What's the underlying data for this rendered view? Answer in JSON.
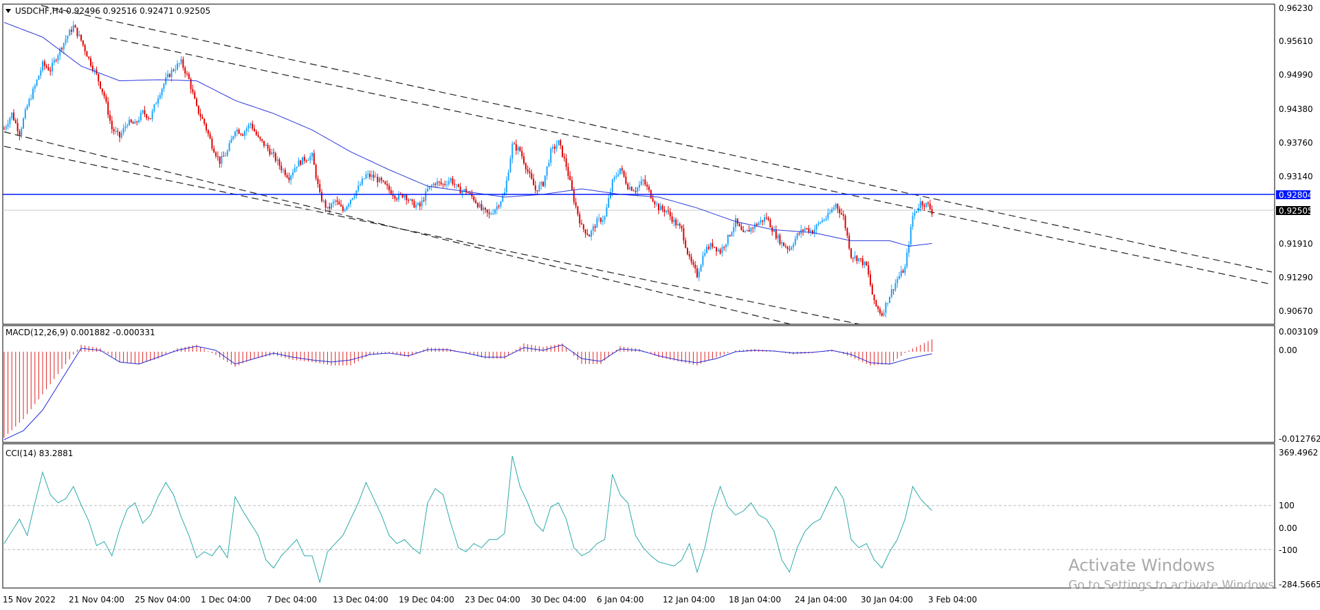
{
  "colors": {
    "bull": "#1aa3ff",
    "bear": "#e00000",
    "ma": "#2a37d8",
    "hline": "#0019ff",
    "macd_hist": "#e02020",
    "macd_signal": "#1f2ad8",
    "cci": "#2aa8a8",
    "price_box": "#000000",
    "level_box": "#0019ff"
  },
  "main": {
    "symbol_header": "USDCHF,H4  0.92496 0.92516 0.92471 0.92505",
    "price_scale": [
      "0.96230",
      "0.95610",
      "0.94990",
      "0.94380",
      "0.93760",
      "0.93140",
      "0.92520",
      "0.91910",
      "0.91290",
      "0.90670"
    ],
    "current_price": "0.92505",
    "horizontal_level": "0.92804"
  },
  "macd": {
    "header": "MACD(12,26,9) 0.001882 -0.000331",
    "scale": [
      "0.003109",
      "0.00",
      "-0.012762"
    ]
  },
  "cci": {
    "header": "CCI(14) 83.2881",
    "scale": [
      "369.4962",
      "100",
      "0.00",
      "-100",
      "-284.5665"
    ]
  },
  "time_axis": [
    "15 Nov 2022",
    "21 Nov 04:00",
    "25 Nov 04:00",
    "1 Dec 04:00",
    "7 Dec 04:00",
    "13 Dec 04:00",
    "19 Dec 04:00",
    "23 Dec 04:00",
    "30 Dec 04:00",
    "6 Jan 04:00",
    "12 Jan 04:00",
    "18 Jan 04:00",
    "24 Jan 04:00",
    "30 Jan 04:00",
    "3 Feb 04:00"
  ],
  "watermark": {
    "line1": "Activate Windows",
    "line2": "Go to Settings to activate Windows."
  },
  "chart_data": {
    "type": "candlestick",
    "symbol": "USDCHF",
    "timeframe": "H4",
    "ylim": [
      0.9052,
      0.9636
    ],
    "close_path": [
      [
        0,
        0.941
      ],
      [
        4,
        0.9438
      ],
      [
        8,
        0.9402
      ],
      [
        12,
        0.9452
      ],
      [
        16,
        0.9488
      ],
      [
        20,
        0.9528
      ],
      [
        24,
        0.9518
      ],
      [
        28,
        0.9548
      ],
      [
        32,
        0.9575
      ],
      [
        36,
        0.9598
      ],
      [
        40,
        0.9572
      ],
      [
        44,
        0.9538
      ],
      [
        48,
        0.9508
      ],
      [
        52,
        0.947
      ],
      [
        56,
        0.941
      ],
      [
        60,
        0.9395
      ],
      [
        64,
        0.9422
      ],
      [
        68,
        0.9418
      ],
      [
        72,
        0.944
      ],
      [
        76,
        0.943
      ],
      [
        80,
        0.947
      ],
      [
        84,
        0.95
      ],
      [
        88,
        0.952
      ],
      [
        92,
        0.9532
      ],
      [
        96,
        0.95
      ],
      [
        100,
        0.9448
      ],
      [
        104,
        0.942
      ],
      [
        108,
        0.938
      ],
      [
        112,
        0.935
      ],
      [
        116,
        0.9368
      ],
      [
        120,
        0.941
      ],
      [
        124,
        0.9402
      ],
      [
        128,
        0.942
      ],
      [
        132,
        0.9392
      ],
      [
        136,
        0.9378
      ],
      [
        140,
        0.936
      ],
      [
        144,
        0.9338
      ],
      [
        148,
        0.9322
      ],
      [
        152,
        0.9345
      ],
      [
        156,
        0.9355
      ],
      [
        160,
        0.936
      ],
      [
        164,
        0.9288
      ],
      [
        168,
        0.9262
      ],
      [
        172,
        0.9278
      ],
      [
        176,
        0.926
      ],
      [
        180,
        0.9282
      ],
      [
        184,
        0.9302
      ],
      [
        188,
        0.9325
      ],
      [
        192,
        0.9322
      ],
      [
        196,
        0.9312
      ],
      [
        200,
        0.9298
      ],
      [
        204,
        0.9285
      ],
      [
        208,
        0.929
      ],
      [
        212,
        0.9272
      ],
      [
        216,
        0.9268
      ],
      [
        220,
        0.9298
      ],
      [
        224,
        0.9312
      ],
      [
        228,
        0.9308
      ],
      [
        232,
        0.9318
      ],
      [
        236,
        0.9298
      ],
      [
        240,
        0.9296
      ],
      [
        244,
        0.9282
      ],
      [
        248,
        0.9262
      ],
      [
        252,
        0.9252
      ],
      [
        256,
        0.9268
      ],
      [
        260,
        0.9292
      ],
      [
        264,
        0.938
      ],
      [
        268,
        0.937
      ],
      [
        272,
        0.9332
      ],
      [
        276,
        0.9298
      ],
      [
        280,
        0.931
      ],
      [
        284,
        0.9368
      ],
      [
        288,
        0.9385
      ],
      [
        292,
        0.9342
      ],
      [
        296,
        0.928
      ],
      [
        300,
        0.923
      ],
      [
        304,
        0.9215
      ],
      [
        308,
        0.924
      ],
      [
        312,
        0.9248
      ],
      [
        316,
        0.9312
      ],
      [
        320,
        0.9338
      ],
      [
        324,
        0.9305
      ],
      [
        328,
        0.9298
      ],
      [
        332,
        0.9315
      ],
      [
        336,
        0.9288
      ],
      [
        340,
        0.9265
      ],
      [
        344,
        0.926
      ],
      [
        348,
        0.924
      ],
      [
        352,
        0.9225
      ],
      [
        356,
        0.917
      ],
      [
        360,
        0.9142
      ],
      [
        364,
        0.9188
      ],
      [
        368,
        0.9198
      ],
      [
        372,
        0.9185
      ],
      [
        376,
        0.921
      ],
      [
        380,
        0.924
      ],
      [
        384,
        0.9215
      ],
      [
        388,
        0.9228
      ],
      [
        392,
        0.9238
      ],
      [
        396,
        0.9248
      ],
      [
        400,
        0.922
      ],
      [
        404,
        0.92
      ],
      [
        408,
        0.919
      ],
      [
        412,
        0.9215
      ],
      [
        416,
        0.9228
      ],
      [
        420,
        0.9222
      ],
      [
        424,
        0.924
      ],
      [
        428,
        0.925
      ],
      [
        432,
        0.9272
      ],
      [
        436,
        0.9248
      ],
      [
        440,
        0.9178
      ],
      [
        444,
        0.9172
      ],
      [
        448,
        0.9158
      ],
      [
        452,
        0.909
      ],
      [
        456,
        0.907
      ],
      [
        460,
        0.9105
      ],
      [
        464,
        0.9135
      ],
      [
        468,
        0.9155
      ],
      [
        472,
        0.925
      ],
      [
        476,
        0.9275
      ],
      [
        480,
        0.927
      ],
      [
        482,
        0.9258
      ]
    ],
    "ma_path": [
      [
        0,
        0.9605
      ],
      [
        20,
        0.9578
      ],
      [
        40,
        0.9525
      ],
      [
        60,
        0.9498
      ],
      [
        80,
        0.95
      ],
      [
        100,
        0.9498
      ],
      [
        120,
        0.9462
      ],
      [
        140,
        0.9438
      ],
      [
        160,
        0.9408
      ],
      [
        180,
        0.9368
      ],
      [
        200,
        0.9335
      ],
      [
        220,
        0.9305
      ],
      [
        240,
        0.9295
      ],
      [
        260,
        0.9285
      ],
      [
        280,
        0.929
      ],
      [
        300,
        0.93
      ],
      [
        320,
        0.929
      ],
      [
        340,
        0.9285
      ],
      [
        360,
        0.9265
      ],
      [
        380,
        0.924
      ],
      [
        400,
        0.9225
      ],
      [
        420,
        0.922
      ],
      [
        440,
        0.9205
      ],
      [
        460,
        0.9205
      ],
      [
        470,
        0.9195
      ],
      [
        482,
        0.92
      ]
    ],
    "macd_hist_path": [
      [
        0,
        -0.0125
      ],
      [
        10,
        -0.0098
      ],
      [
        20,
        -0.0062
      ],
      [
        30,
        -0.0025
      ],
      [
        40,
        0.001
      ],
      [
        50,
        0.0005
      ],
      [
        60,
        -0.0015
      ],
      [
        70,
        -0.0018
      ],
      [
        80,
        -0.001
      ],
      [
        90,
        0.0005
      ],
      [
        100,
        0.001
      ],
      [
        110,
        -0.0005
      ],
      [
        120,
        -0.0022
      ],
      [
        130,
        -0.001
      ],
      [
        140,
        -0.0005
      ],
      [
        150,
        -0.0012
      ],
      [
        160,
        -0.0015
      ],
      [
        170,
        -0.002
      ],
      [
        180,
        -0.002
      ],
      [
        190,
        -0.0005
      ],
      [
        200,
        -0.0002
      ],
      [
        210,
        -0.0008
      ],
      [
        220,
        0.0006
      ],
      [
        230,
        0.0005
      ],
      [
        240,
        -0.0002
      ],
      [
        250,
        -0.001
      ],
      [
        260,
        -0.001
      ],
      [
        270,
        0.0012
      ],
      [
        280,
        0.0007
      ],
      [
        290,
        0.0012
      ],
      [
        300,
        -0.0018
      ],
      [
        310,
        -0.0018
      ],
      [
        320,
        0.0008
      ],
      [
        330,
        0.0004
      ],
      [
        340,
        -0.0008
      ],
      [
        350,
        -0.0014
      ],
      [
        360,
        -0.002
      ],
      [
        370,
        -0.0008
      ],
      [
        380,
        0.0002
      ],
      [
        390,
        0.0004
      ],
      [
        400,
        0.0001
      ],
      [
        410,
        -0.0004
      ],
      [
        420,
        -0.0002
      ],
      [
        430,
        0.0003
      ],
      [
        440,
        -0.0008
      ],
      [
        450,
        -0.002
      ],
      [
        460,
        -0.0018
      ],
      [
        470,
        0.0002
      ],
      [
        482,
        0.0018
      ]
    ],
    "macd_signal_path": [
      [
        0,
        -0.0128
      ],
      [
        10,
        -0.0115
      ],
      [
        20,
        -0.0085
      ],
      [
        30,
        -0.004
      ],
      [
        40,
        0.0005
      ],
      [
        50,
        0.0002
      ],
      [
        60,
        -0.0015
      ],
      [
        70,
        -0.0018
      ],
      [
        80,
        -0.0008
      ],
      [
        90,
        0.0002
      ],
      [
        100,
        0.0008
      ],
      [
        110,
        0.0002
      ],
      [
        120,
        -0.0018
      ],
      [
        130,
        -0.001
      ],
      [
        140,
        -0.0002
      ],
      [
        150,
        -0.0008
      ],
      [
        160,
        -0.0012
      ],
      [
        170,
        -0.0015
      ],
      [
        180,
        -0.0012
      ],
      [
        190,
        -0.0004
      ],
      [
        200,
        -0.0002
      ],
      [
        210,
        -0.0006
      ],
      [
        220,
        0.0003
      ],
      [
        230,
        0.0003
      ],
      [
        240,
        -0.0002
      ],
      [
        250,
        -0.0008
      ],
      [
        260,
        -0.0008
      ],
      [
        270,
        0.0006
      ],
      [
        280,
        0.0002
      ],
      [
        290,
        0.001
      ],
      [
        300,
        -0.001
      ],
      [
        310,
        -0.0014
      ],
      [
        320,
        0.0004
      ],
      [
        330,
        0.0002
      ],
      [
        340,
        -0.0006
      ],
      [
        350,
        -0.0012
      ],
      [
        360,
        -0.0016
      ],
      [
        370,
        -0.001
      ],
      [
        380,
        0.0
      ],
      [
        390,
        0.0002
      ],
      [
        400,
        0.0001
      ],
      [
        410,
        -0.0002
      ],
      [
        420,
        -0.0001
      ],
      [
        430,
        0.0002
      ],
      [
        440,
        -0.0004
      ],
      [
        450,
        -0.0016
      ],
      [
        460,
        -0.0018
      ],
      [
        470,
        -0.001
      ],
      [
        482,
        -0.0003
      ]
    ],
    "cci_path": [
      [
        0,
        -80
      ],
      [
        4,
        -20
      ],
      [
        8,
        40
      ],
      [
        12,
        -40
      ],
      [
        16,
        120
      ],
      [
        20,
        270
      ],
      [
        24,
        160
      ],
      [
        28,
        120
      ],
      [
        32,
        140
      ],
      [
        36,
        200
      ],
      [
        40,
        110
      ],
      [
        44,
        30
      ],
      [
        48,
        -90
      ],
      [
        52,
        -70
      ],
      [
        56,
        -140
      ],
      [
        60,
        -10
      ],
      [
        64,
        90
      ],
      [
        68,
        120
      ],
      [
        72,
        20
      ],
      [
        76,
        60
      ],
      [
        80,
        150
      ],
      [
        84,
        220
      ],
      [
        88,
        160
      ],
      [
        92,
        50
      ],
      [
        96,
        -40
      ],
      [
        100,
        -150
      ],
      [
        104,
        -120
      ],
      [
        108,
        -140
      ],
      [
        112,
        -90
      ],
      [
        116,
        -150
      ],
      [
        120,
        150
      ],
      [
        124,
        80
      ],
      [
        128,
        20
      ],
      [
        132,
        -40
      ],
      [
        136,
        -160
      ],
      [
        140,
        -200
      ],
      [
        144,
        -140
      ],
      [
        148,
        -100
      ],
      [
        152,
        -60
      ],
      [
        156,
        -140
      ],
      [
        160,
        -140
      ],
      [
        164,
        -270
      ],
      [
        168,
        -120
      ],
      [
        172,
        -80
      ],
      [
        176,
        -40
      ],
      [
        180,
        40
      ],
      [
        184,
        120
      ],
      [
        188,
        220
      ],
      [
        192,
        140
      ],
      [
        196,
        60
      ],
      [
        200,
        -40
      ],
      [
        204,
        -80
      ],
      [
        208,
        -60
      ],
      [
        212,
        -100
      ],
      [
        216,
        -130
      ],
      [
        220,
        120
      ],
      [
        224,
        190
      ],
      [
        228,
        160
      ],
      [
        232,
        20
      ],
      [
        236,
        -100
      ],
      [
        240,
        -120
      ],
      [
        244,
        -80
      ],
      [
        248,
        -100
      ],
      [
        252,
        -60
      ],
      [
        256,
        -60
      ],
      [
        260,
        -30
      ],
      [
        264,
        350
      ],
      [
        268,
        200
      ],
      [
        272,
        120
      ],
      [
        276,
        20
      ],
      [
        280,
        -20
      ],
      [
        284,
        100
      ],
      [
        288,
        120
      ],
      [
        292,
        40
      ],
      [
        296,
        -100
      ],
      [
        300,
        -140
      ],
      [
        304,
        -120
      ],
      [
        308,
        -80
      ],
      [
        312,
        -60
      ],
      [
        316,
        260
      ],
      [
        320,
        160
      ],
      [
        324,
        120
      ],
      [
        328,
        -40
      ],
      [
        332,
        -100
      ],
      [
        336,
        -140
      ],
      [
        340,
        -170
      ],
      [
        344,
        -180
      ],
      [
        348,
        -190
      ],
      [
        352,
        -160
      ],
      [
        356,
        -80
      ],
      [
        360,
        -220
      ],
      [
        364,
        -100
      ],
      [
        368,
        80
      ],
      [
        372,
        200
      ],
      [
        376,
        100
      ],
      [
        380,
        60
      ],
      [
        384,
        80
      ],
      [
        388,
        120
      ],
      [
        392,
        60
      ],
      [
        396,
        40
      ],
      [
        400,
        -20
      ],
      [
        404,
        -160
      ],
      [
        408,
        -220
      ],
      [
        412,
        -100
      ],
      [
        416,
        -20
      ],
      [
        420,
        20
      ],
      [
        424,
        40
      ],
      [
        428,
        120
      ],
      [
        432,
        200
      ],
      [
        436,
        140
      ],
      [
        440,
        -60
      ],
      [
        444,
        -100
      ],
      [
        448,
        -80
      ],
      [
        452,
        -160
      ],
      [
        456,
        -200
      ],
      [
        460,
        -120
      ],
      [
        464,
        -60
      ],
      [
        468,
        40
      ],
      [
        472,
        200
      ],
      [
        476,
        140
      ],
      [
        480,
        100
      ],
      [
        482,
        83
      ]
    ]
  }
}
